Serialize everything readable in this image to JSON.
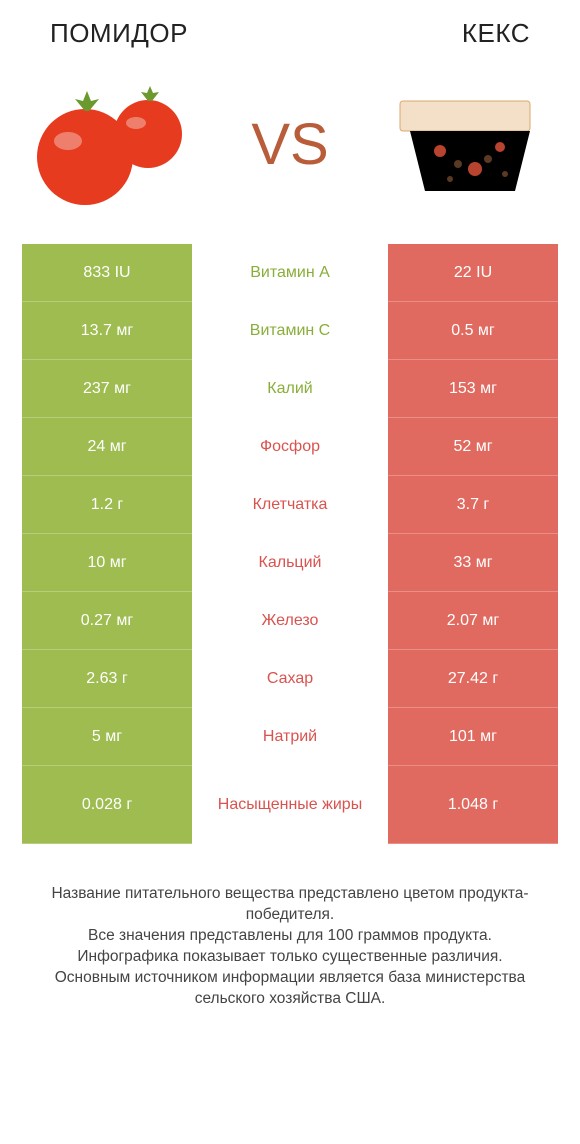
{
  "header": {
    "left_title": "ПОМИДОР",
    "right_title": "КЕКС",
    "vs_label": "VS"
  },
  "colors": {
    "left_col": "#9ebc4f",
    "right_col": "#e06a5f",
    "nutrient_left_win": "#8aae3a",
    "nutrient_right_win": "#d9534f",
    "vs_text": "#b85c3a",
    "background": "#ffffff"
  },
  "table": {
    "rows": [
      {
        "nutrient": "Витамин A",
        "left": "833 IU",
        "right": "22 IU",
        "winner": "left",
        "tall": false
      },
      {
        "nutrient": "Витамин C",
        "left": "13.7 мг",
        "right": "0.5 мг",
        "winner": "left",
        "tall": false
      },
      {
        "nutrient": "Калий",
        "left": "237 мг",
        "right": "153 мг",
        "winner": "left",
        "tall": false
      },
      {
        "nutrient": "Фосфор",
        "left": "24 мг",
        "right": "52 мг",
        "winner": "right",
        "tall": false
      },
      {
        "nutrient": "Клетчатка",
        "left": "1.2 г",
        "right": "3.7 г",
        "winner": "right",
        "tall": false
      },
      {
        "nutrient": "Кальций",
        "left": "10 мг",
        "right": "33 мг",
        "winner": "right",
        "tall": false
      },
      {
        "nutrient": "Железо",
        "left": "0.27 мг",
        "right": "2.07 мг",
        "winner": "right",
        "tall": false
      },
      {
        "nutrient": "Сахар",
        "left": "2.63 г",
        "right": "27.42 г",
        "winner": "right",
        "tall": false
      },
      {
        "nutrient": "Натрий",
        "left": "5 мг",
        "right": "101 мг",
        "winner": "right",
        "tall": false
      },
      {
        "nutrient": "Насыщенные жиры",
        "left": "0.028 г",
        "right": "1.048 г",
        "winner": "right",
        "tall": true
      }
    ]
  },
  "footer_lines": [
    "Название питательного вещества представлено цветом продукта-победителя.",
    "Все значения представлены для 100 граммов продукта.",
    "Инфографика показывает только существенные различия.",
    "Основным источником информации является база министерства сельского хозяйства США."
  ]
}
